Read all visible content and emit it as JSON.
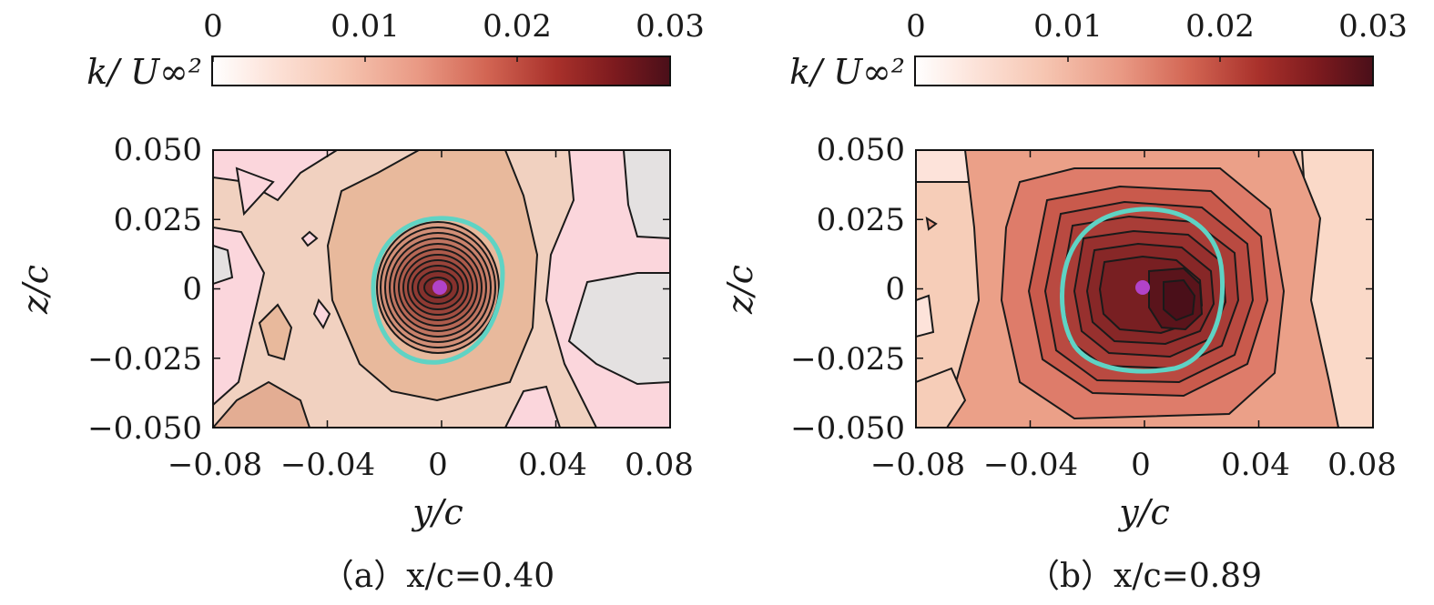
{
  "colorbar": {
    "label": "k/ U∞²",
    "ticks": [
      "0",
      "0.01",
      "0.02",
      "0.03"
    ],
    "range": [
      0,
      0.03
    ],
    "colors": [
      "#ffffff",
      "#fde3da",
      "#f7c2ae",
      "#e8927c",
      "#cf5e4e",
      "#a8302a",
      "#7e1a1d",
      "#4e1019"
    ]
  },
  "panels": [
    {
      "caption": "（a）x/c=0.40",
      "xlabel": "y/c",
      "ylabel": "z/c",
      "xticks": [
        "−0.08",
        "−0.04",
        "0",
        "0.04",
        "0.08"
      ],
      "yticks": [
        "0.050",
        "0.025",
        "0",
        "−0.025",
        "−0.050"
      ]
    },
    {
      "caption": "（b）x/c=0.89",
      "xlabel": "y/c",
      "ylabel": "z/c",
      "xticks": [
        "−0.08",
        "−0.04",
        "0",
        "0.04",
        "0.08"
      ],
      "yticks": [
        "0.050",
        "0.025",
        "0",
        "−0.025",
        "−0.050"
      ]
    }
  ],
  "chart_data": [
    {
      "type": "heatmap",
      "title": "（a）x/c=0.40",
      "quantity": "k/U∞²",
      "xlabel": "y/c",
      "ylabel": "z/c",
      "xlim": [
        -0.08,
        0.08
      ],
      "ylim": [
        -0.05,
        0.05
      ],
      "clim": [
        0,
        0.03
      ],
      "vortex_center": {
        "y": 0.0,
        "z": 0.0
      },
      "vortex_core_radius": 0.024,
      "peak_value": 0.022,
      "background_level": 0.003,
      "contours": "black isolines; cyan circle marks vortex core boundary; magenta dot marks vortex center"
    },
    {
      "type": "heatmap",
      "title": "（b）x/c=0.89",
      "quantity": "k/U∞²",
      "xlabel": "y/c",
      "ylabel": "z/c",
      "xlim": [
        -0.08,
        0.08
      ],
      "ylim": [
        -0.05,
        0.05
      ],
      "clim": [
        0,
        0.03
      ],
      "vortex_center": {
        "y": 0.0,
        "z": 0.0
      },
      "secondary_peak": {
        "y": 0.012,
        "z": -0.003
      },
      "vortex_core_radius": 0.03,
      "peak_value": 0.03,
      "background_level": 0.008,
      "contours": "black isolines; cyan circle marks vortex core boundary; magenta dot marks vortex center"
    }
  ]
}
